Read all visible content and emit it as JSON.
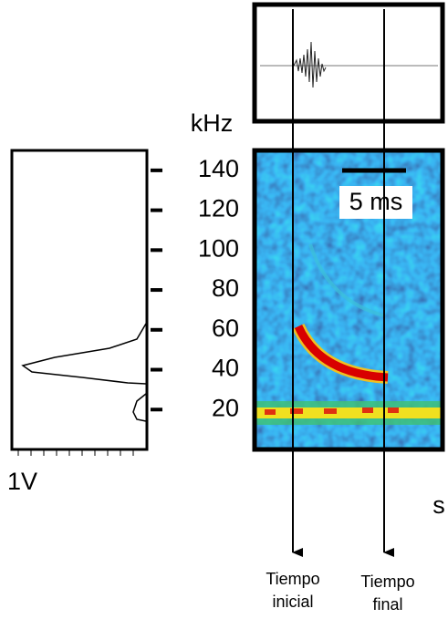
{
  "chart_data": {
    "type": "spectrogram",
    "y_label": "kHz",
    "x_label": "s",
    "ylim": [
      0,
      150
    ],
    "yticks": [
      20,
      40,
      60,
      80,
      100,
      120,
      140
    ],
    "scale_bar": "5 ms",
    "spectrum_label": "1V",
    "markers": [
      {
        "label_lines": [
          "Tiempo",
          "inicial"
        ]
      },
      {
        "label_lines": [
          "Tiempo",
          "final"
        ]
      }
    ]
  }
}
